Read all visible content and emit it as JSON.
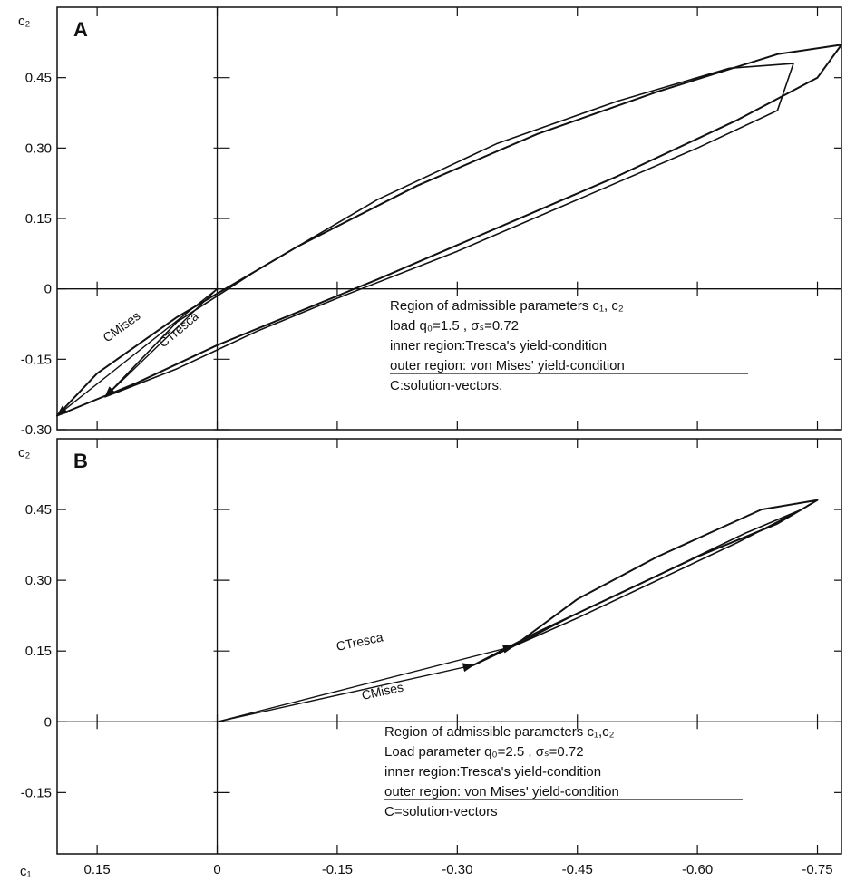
{
  "chart_data": [
    {
      "type": "area",
      "panel_label": "A",
      "ylabel": "c₂",
      "xlim": [
        0.2,
        -0.78
      ],
      "ylim": [
        -0.3,
        0.6
      ],
      "y_ticks": [
        "0.45",
        "0.30",
        "0.15",
        "0",
        "-0.15",
        "-0.30"
      ],
      "y_tick_values": [
        0.45,
        0.3,
        0.15,
        0,
        -0.15,
        -0.3
      ],
      "x_tick_values": [
        0.15,
        0,
        -0.15,
        -0.3,
        -0.45,
        -0.6,
        -0.75
      ],
      "annotation": [
        "Region of admissible parameters c₁, c₂",
        "load q₀=1.5 , σₛ=0.72",
        "inner region:Tresca's yield-condition",
        "outer region: von Mises' yield-condition",
        "C:solution-vectors."
      ],
      "series": [
        {
          "name": "outer region: von Mises' yield-condition",
          "x": [
            0.2,
            0.1,
            0,
            -0.1,
            -0.2,
            -0.35,
            -0.5,
            -0.65,
            -0.75,
            -0.78,
            -0.7,
            -0.55,
            -0.4,
            -0.25,
            -0.1,
            0.05,
            0.15,
            0.2
          ],
          "y": [
            -0.27,
            -0.2,
            -0.12,
            -0.05,
            0.02,
            0.13,
            0.24,
            0.36,
            0.45,
            0.52,
            0.5,
            0.42,
            0.33,
            0.22,
            0.09,
            -0.06,
            -0.18,
            -0.27
          ]
        },
        {
          "name": "inner region: Tresca's yield-condition",
          "x": [
            0.14,
            0.05,
            -0.05,
            -0.15,
            -0.3,
            -0.45,
            -0.6,
            -0.7,
            -0.72,
            -0.64,
            -0.5,
            -0.35,
            -0.2,
            -0.05,
            0.05,
            0.14
          ],
          "y": [
            -0.23,
            -0.17,
            -0.09,
            -0.02,
            0.08,
            0.19,
            0.3,
            0.38,
            0.48,
            0.47,
            0.4,
            0.31,
            0.19,
            0.04,
            -0.07,
            -0.23
          ]
        }
      ],
      "vectors": [
        {
          "name": "C_Mises",
          "label": "CMises",
          "from": [
            0,
            0
          ],
          "to": [
            0.2,
            -0.27
          ]
        },
        {
          "name": "C_Tresca",
          "label": "CTresca",
          "from": [
            0,
            0
          ],
          "to": [
            0.14,
            -0.23
          ]
        }
      ]
    },
    {
      "type": "area",
      "panel_label": "B",
      "xlabel": "c₁",
      "ylabel": "c₂",
      "xlim": [
        0.2,
        -0.78
      ],
      "ylim": [
        -0.28,
        0.6
      ],
      "y_ticks": [
        "0.45",
        "0.30",
        "0.15",
        "0",
        "-0.15"
      ],
      "y_tick_values": [
        0.45,
        0.3,
        0.15,
        0,
        -0.15
      ],
      "x_ticks": [
        "0.15",
        "0",
        "-0.15",
        "-0.30",
        "-0.45",
        "-0.60",
        "-0.75"
      ],
      "x_tick_values": [
        0.15,
        0,
        -0.15,
        -0.3,
        -0.45,
        -0.6,
        -0.75
      ],
      "annotation": [
        "Region of admissible parameters c₁,c₂",
        "Load parameter q₀=2.5 , σₛ=0.72",
        "inner region:Tresca's yield-condition",
        "outer region: von Mises' yield-condition",
        "C=solution-vectors"
      ],
      "series": [
        {
          "name": "outer region: von Mises' yield-condition",
          "x": [
            -0.32,
            -0.4,
            -0.5,
            -0.6,
            -0.7,
            -0.75,
            -0.68,
            -0.55,
            -0.45,
            -0.37,
            -0.32
          ],
          "y": [
            0.12,
            0.19,
            0.27,
            0.35,
            0.42,
            0.47,
            0.45,
            0.35,
            0.26,
            0.16,
            0.12
          ]
        },
        {
          "name": "inner region: Tresca's yield-condition",
          "x": [
            -0.37,
            -0.45,
            -0.55,
            -0.65,
            -0.73,
            -0.66,
            -0.55,
            -0.45,
            -0.37
          ],
          "y": [
            0.16,
            0.22,
            0.3,
            0.38,
            0.45,
            0.4,
            0.31,
            0.23,
            0.16
          ]
        }
      ],
      "vectors": [
        {
          "name": "C_Tresca",
          "label": "CTresca",
          "from": [
            0,
            0
          ],
          "to": [
            -0.37,
            0.16
          ]
        },
        {
          "name": "C_Mises",
          "label": "CMises",
          "from": [
            0,
            0
          ],
          "to": [
            -0.32,
            0.12
          ]
        }
      ]
    }
  ]
}
